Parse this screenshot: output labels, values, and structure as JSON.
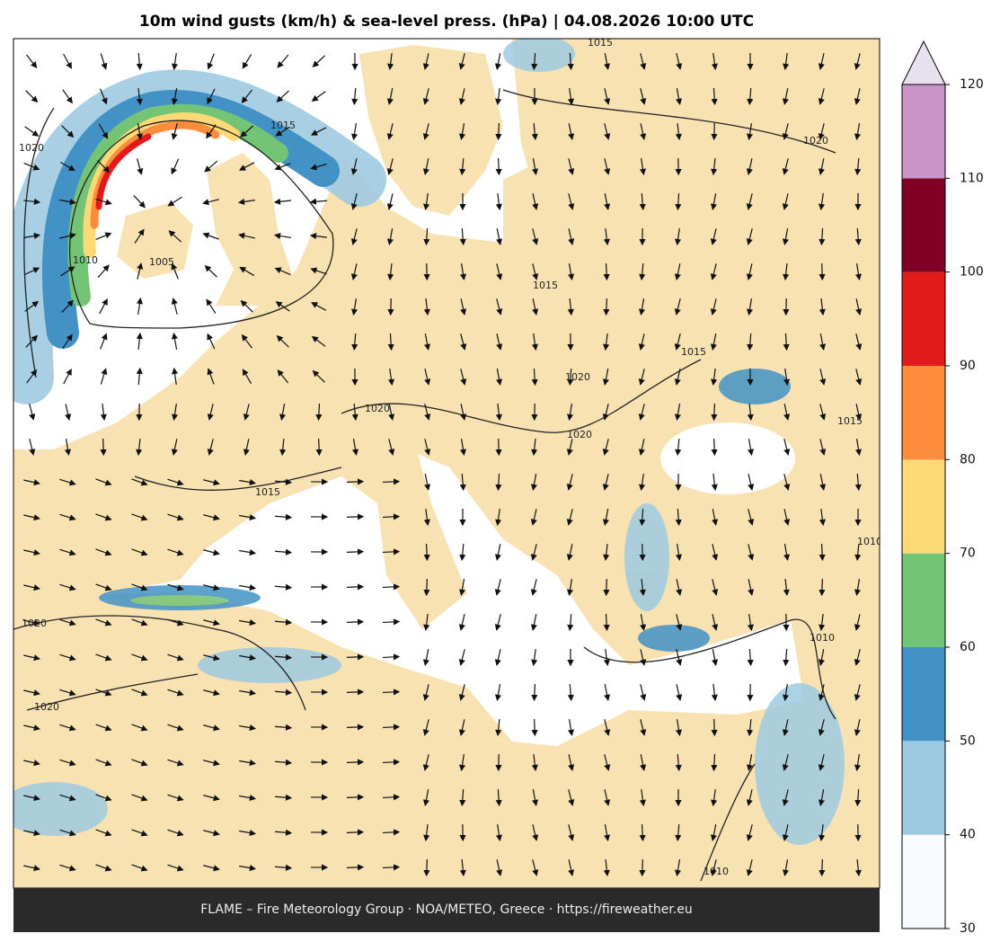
{
  "title": "10m wind gusts (km/h) & sea-level press. (hPa)  |  04.08.2026 10:00 UTC",
  "footer": "FLAME – Fire Meteorology Group · NOA/METEO, Greece · https://fireweather.eu",
  "colorbar": {
    "ticks": [
      30,
      40,
      50,
      60,
      70,
      80,
      90,
      100,
      110,
      120
    ],
    "colors": [
      "#f7fbff",
      "#9ecae1",
      "#4292c6",
      "#74c476",
      "#fed976",
      "#fd8d3c",
      "#e31a1c",
      "#800026",
      "#c994c7"
    ],
    "extend": "max",
    "extend_color": "#e7e1ef"
  },
  "contour_labels": [
    "1015",
    "1020",
    "1015",
    "1020",
    "1010",
    "1005",
    "1015",
    "1020",
    "1015",
    "1020",
    "1020",
    "1015",
    "1015",
    "1020",
    "1020",
    "1010",
    "1010",
    "1010"
  ]
}
